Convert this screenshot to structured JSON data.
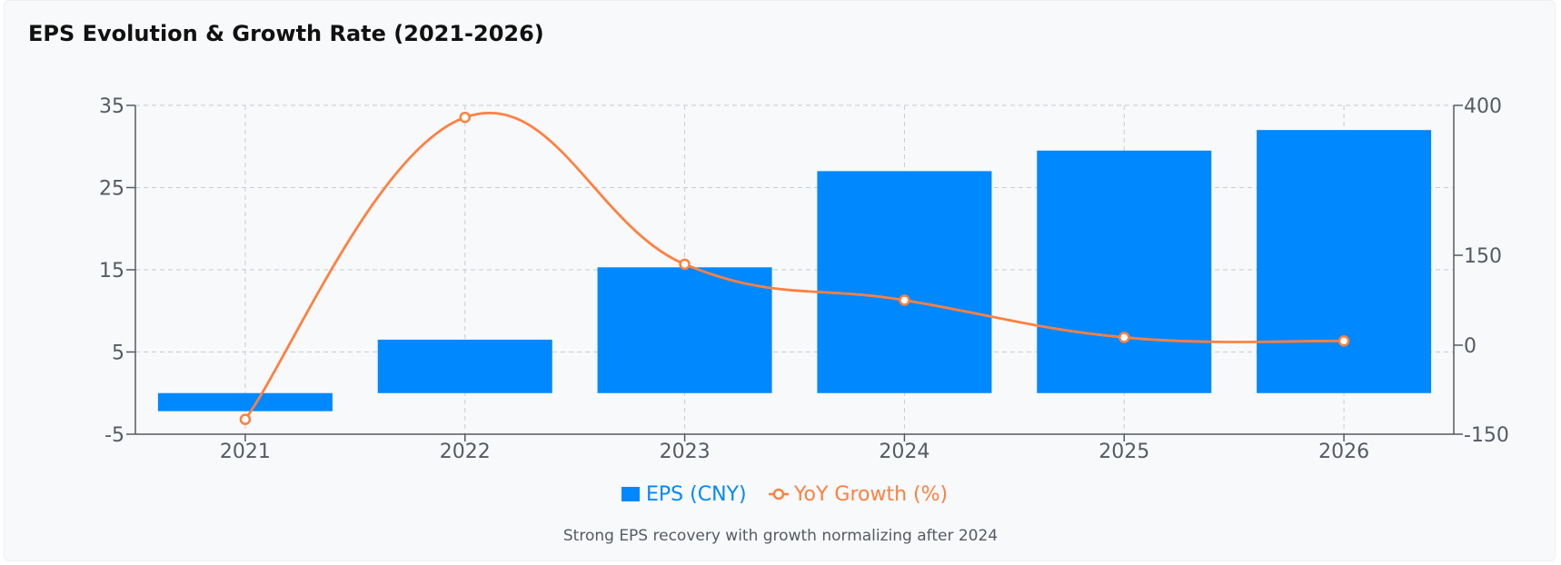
{
  "title": "EPS Evolution & Growth Rate (2021-2026)",
  "footnote": "Strong EPS recovery with growth normalizing after 2024",
  "colors": {
    "bar": "#0088ff",
    "line": "#ff8040",
    "grid": "#c8ccd2",
    "axis": "#555b63"
  },
  "chart_data": {
    "type": "bar",
    "categories": [
      "2021",
      "2022",
      "2023",
      "2024",
      "2025",
      "2026"
    ],
    "series": [
      {
        "name": "EPS (CNY)",
        "type": "bar",
        "axis": "left",
        "values": [
          -2.2,
          6.5,
          15.3,
          27.0,
          29.5,
          32.0
        ]
      },
      {
        "name": "YoY Growth (%)",
        "type": "line",
        "axis": "right",
        "smooth": true,
        "values": [
          -125,
          380,
          135,
          75,
          13,
          7
        ]
      }
    ],
    "y_left": {
      "min": -5,
      "max": 35,
      "ticks": [
        "-5",
        "5",
        "15",
        "25",
        "35"
      ]
    },
    "y_right": {
      "min": -150,
      "max": 400,
      "ticks": [
        "-150",
        "0",
        "150",
        "400"
      ]
    },
    "grid": true,
    "legend": "bottom"
  }
}
